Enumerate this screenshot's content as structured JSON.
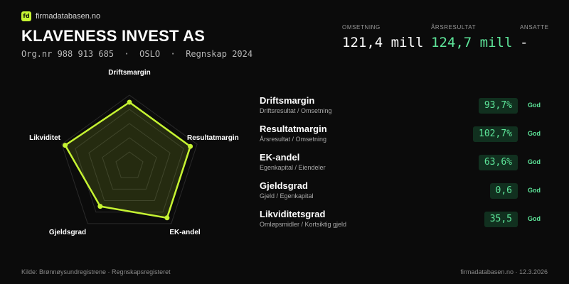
{
  "brand": {
    "logo_text": "fd",
    "name": "firmadatabasen.no"
  },
  "company": {
    "name": "KLAVENESS INVEST AS",
    "meta": "Org.nr 988 913 685  ·  OSLO  ·  Regnskap 2024"
  },
  "kpis": [
    {
      "label": "OMSETNING",
      "value": "121,4 mill",
      "color": "#ffffff"
    },
    {
      "label": "ÅRSRESULTAT",
      "value": "124,7 mill",
      "color": "#5ee69a"
    },
    {
      "label": "ANSATTE",
      "value": "-",
      "color": "#ffffff"
    }
  ],
  "radar": {
    "axes": [
      "Driftsmargin",
      "Resultatmargin",
      "EK-andel",
      "Gjeldsgrad",
      "Likviditet"
    ],
    "scores": [
      0.9,
      0.9,
      0.9,
      0.7,
      0.95
    ],
    "line_color": "#c6f432",
    "grid_color": "#2a2a2a"
  },
  "metrics": [
    {
      "title": "Driftsmargin",
      "subtitle": "Driftsresultat / Omsetning",
      "value": "93,7%",
      "status": "God"
    },
    {
      "title": "Resultatmargin",
      "subtitle": "Årsresultat / Omsetning",
      "value": "102,7%",
      "status": "God"
    },
    {
      "title": "EK-andel",
      "subtitle": "Egenkapital / Eiendeler",
      "value": "63,6%",
      "status": "God"
    },
    {
      "title": "Gjeldsgrad",
      "subtitle": "Gjeld / Egenkapital",
      "value": "0,6",
      "status": "God"
    },
    {
      "title": "Likviditetsgrad",
      "subtitle": "Omløpsmidler / Kortsiktig gjeld",
      "value": "35,5",
      "status": "God"
    }
  ],
  "footer": {
    "source": "Kilde: Brønnøysundregistrene · Regnskapsregisteret",
    "site_date": "firmadatabasen.no · 12.3.2026"
  }
}
